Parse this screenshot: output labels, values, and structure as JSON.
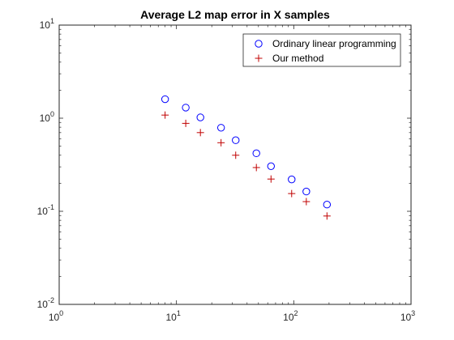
{
  "chart_data": {
    "type": "scatter",
    "title": "Average L2 map error in X samples",
    "xlabel": "",
    "ylabel": "",
    "xscale": "log",
    "yscale": "log",
    "xlim": [
      1,
      1000
    ],
    "ylim": [
      0.01,
      10
    ],
    "grid": false,
    "legend_position": "top-right",
    "x_ticks": [
      {
        "value": 1,
        "base": "10",
        "exp": "0"
      },
      {
        "value": 10,
        "base": "10",
        "exp": "1"
      },
      {
        "value": 100,
        "base": "10",
        "exp": "2"
      },
      {
        "value": 1000,
        "base": "10",
        "exp": "3"
      }
    ],
    "y_ticks": [
      {
        "value": 0.01,
        "base": "10",
        "exp": "-2"
      },
      {
        "value": 0.1,
        "base": "10",
        "exp": "-1"
      },
      {
        "value": 1,
        "base": "10",
        "exp": "0"
      },
      {
        "value": 10,
        "base": "10",
        "exp": "1"
      }
    ],
    "series": [
      {
        "name": "Ordinary linear programming",
        "marker": "circle",
        "color": "#0000ff",
        "x": [
          8,
          12,
          16,
          24,
          32,
          48,
          64,
          96,
          128,
          192
        ],
        "y": [
          1.6,
          1.3,
          1.02,
          0.79,
          0.58,
          0.42,
          0.305,
          0.22,
          0.163,
          0.118
        ]
      },
      {
        "name": "Our method",
        "marker": "plus",
        "color": "#c00000",
        "x": [
          8,
          12,
          16,
          24,
          32,
          48,
          64,
          96,
          128,
          192
        ],
        "y": [
          1.08,
          0.88,
          0.7,
          0.545,
          0.4,
          0.295,
          0.222,
          0.155,
          0.127,
          0.089
        ]
      }
    ]
  }
}
